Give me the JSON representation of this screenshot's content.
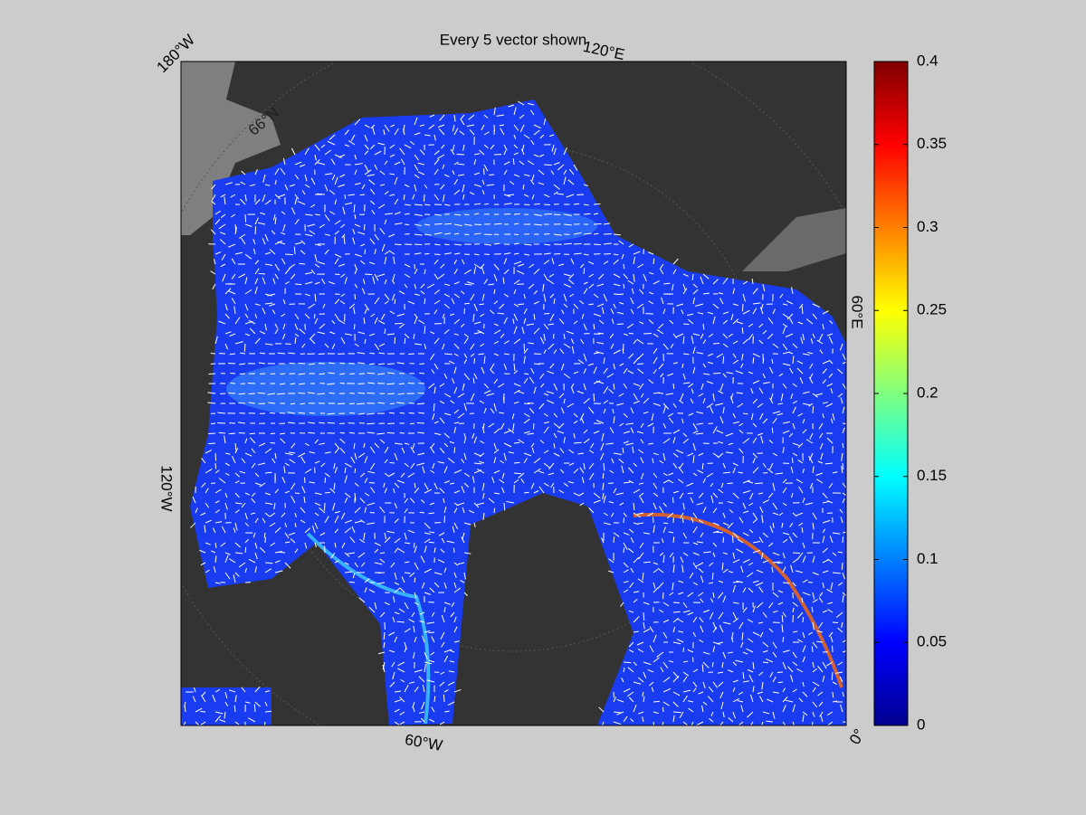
{
  "title": "Every 5 vector shown",
  "map": {
    "labels": [
      "180°W",
      "120°E",
      "60°E",
      "0°",
      "60°W",
      "120°W",
      "66°N"
    ]
  },
  "colorbar": {
    "lim": [
      0,
      0.4
    ],
    "ticks": [
      0,
      0.05,
      0.1,
      0.15,
      0.2,
      0.25,
      0.3,
      0.35,
      0.4
    ]
  }
}
